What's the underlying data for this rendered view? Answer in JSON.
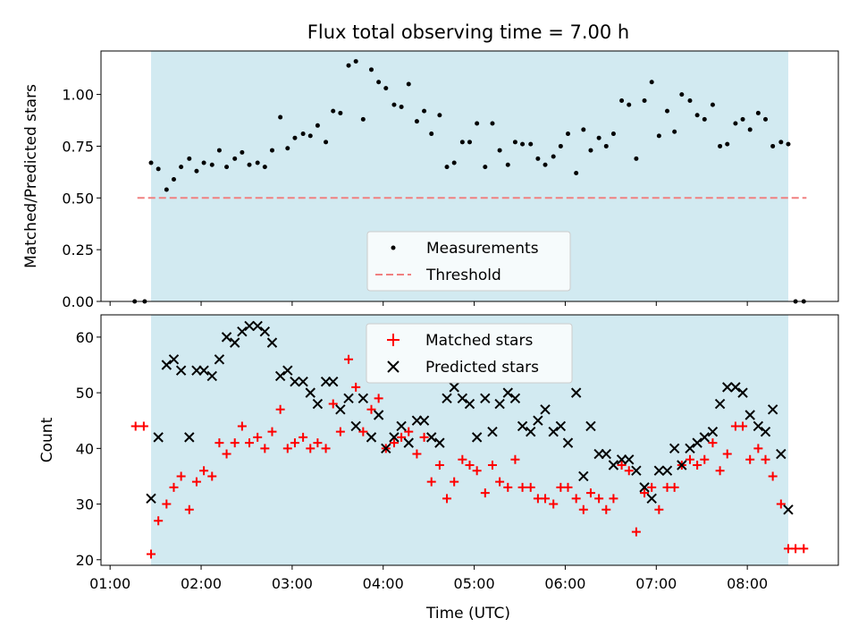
{
  "chart_data": [
    {
      "type": "scatter",
      "panel": "top",
      "title": "Flux total observing time = 7.00 h",
      "xlabel": "",
      "ylabel": "Matched/Predicted stars",
      "ylim": [
        0,
        1.21
      ],
      "yticks": [
        0.0,
        0.25,
        0.5,
        0.75,
        1.0
      ],
      "ytick_labels": [
        "0.00",
        "0.25",
        "0.50",
        "0.75",
        "1.00"
      ],
      "shaded_span_hours": [
        1.45,
        8.45
      ],
      "shade_color": "#add8e6",
      "legend_position": "lower center",
      "threshold": {
        "name": "Threshold",
        "value": 0.5,
        "x_range_hours": [
          1.3,
          8.65
        ],
        "color": "#f08080"
      },
      "series": [
        {
          "name": "Measurements",
          "color": "#000000",
          "marker": "dot",
          "points": [
            [
              1.27,
              0
            ],
            [
              1.38,
              0
            ],
            [
              1.45,
              0.67
            ],
            [
              1.53,
              0.64
            ],
            [
              1.62,
              0.54
            ],
            [
              1.7,
              0.59
            ],
            [
              1.78,
              0.65
            ],
            [
              1.87,
              0.69
            ],
            [
              1.95,
              0.63
            ],
            [
              2.03,
              0.67
            ],
            [
              2.12,
              0.66
            ],
            [
              2.2,
              0.73
            ],
            [
              2.28,
              0.65
            ],
            [
              2.37,
              0.69
            ],
            [
              2.45,
              0.72
            ],
            [
              2.53,
              0.66
            ],
            [
              2.62,
              0.67
            ],
            [
              2.7,
              0.65
            ],
            [
              2.78,
              0.73
            ],
            [
              2.87,
              0.89
            ],
            [
              2.95,
              0.74
            ],
            [
              3.03,
              0.79
            ],
            [
              3.12,
              0.81
            ],
            [
              3.2,
              0.8
            ],
            [
              3.28,
              0.85
            ],
            [
              3.37,
              0.77
            ],
            [
              3.45,
              0.92
            ],
            [
              3.53,
              0.91
            ],
            [
              3.62,
              1.14
            ],
            [
              3.7,
              1.16
            ],
            [
              3.78,
              0.88
            ],
            [
              3.87,
              1.12
            ],
            [
              3.95,
              1.06
            ],
            [
              4.03,
              1.03
            ],
            [
              4.12,
              0.95
            ],
            [
              4.2,
              0.94
            ],
            [
              4.28,
              1.05
            ],
            [
              4.37,
              0.87
            ],
            [
              4.45,
              0.92
            ],
            [
              4.53,
              0.81
            ],
            [
              4.62,
              0.9
            ],
            [
              4.7,
              0.65
            ],
            [
              4.78,
              0.67
            ],
            [
              4.87,
              0.77
            ],
            [
              4.95,
              0.77
            ],
            [
              5.03,
              0.86
            ],
            [
              5.12,
              0.65
            ],
            [
              5.2,
              0.86
            ],
            [
              5.28,
              0.73
            ],
            [
              5.37,
              0.66
            ],
            [
              5.45,
              0.77
            ],
            [
              5.53,
              0.76
            ],
            [
              5.62,
              0.76
            ],
            [
              5.7,
              0.69
            ],
            [
              5.78,
              0.66
            ],
            [
              5.87,
              0.7
            ],
            [
              5.95,
              0.75
            ],
            [
              6.03,
              0.81
            ],
            [
              6.12,
              0.62
            ],
            [
              6.2,
              0.83
            ],
            [
              6.28,
              0.73
            ],
            [
              6.37,
              0.79
            ],
            [
              6.45,
              0.75
            ],
            [
              6.53,
              0.81
            ],
            [
              6.62,
              0.97
            ],
            [
              6.7,
              0.95
            ],
            [
              6.78,
              0.69
            ],
            [
              6.87,
              0.97
            ],
            [
              6.95,
              1.06
            ],
            [
              7.03,
              0.8
            ],
            [
              7.12,
              0.92
            ],
            [
              7.2,
              0.82
            ],
            [
              7.28,
              1.0
            ],
            [
              7.37,
              0.97
            ],
            [
              7.45,
              0.9
            ],
            [
              7.53,
              0.88
            ],
            [
              7.62,
              0.95
            ],
            [
              7.7,
              0.75
            ],
            [
              7.78,
              0.76
            ],
            [
              7.87,
              0.86
            ],
            [
              7.95,
              0.88
            ],
            [
              8.03,
              0.83
            ],
            [
              8.12,
              0.91
            ],
            [
              8.2,
              0.88
            ],
            [
              8.28,
              0.75
            ],
            [
              8.37,
              0.77
            ],
            [
              8.45,
              0.76
            ],
            [
              8.53,
              0
            ],
            [
              8.62,
              0
            ]
          ]
        }
      ]
    },
    {
      "type": "scatter",
      "panel": "bottom",
      "title": "",
      "xlabel": "Time (UTC)",
      "ylabel": "Count",
      "xlim_hours": [
        0.9,
        9.0
      ],
      "ylim": [
        19,
        64
      ],
      "xticks_hours": [
        1,
        2,
        3,
        4,
        5,
        6,
        7,
        8
      ],
      "xtick_labels": [
        "01:00",
        "02:00",
        "03:00",
        "04:00",
        "05:00",
        "06:00",
        "07:00",
        "08:00"
      ],
      "yticks": [
        20,
        30,
        40,
        50,
        60
      ],
      "ytick_labels": [
        "20",
        "30",
        "40",
        "50",
        "60"
      ],
      "shaded_span_hours": [
        1.45,
        8.45
      ],
      "shade_color": "#add8e6",
      "legend_position": "upper center",
      "series": [
        {
          "name": "Matched stars",
          "color": "#ff0000",
          "marker": "plus",
          "points": [
            [
              1.28,
              44
            ],
            [
              1.37,
              44
            ],
            [
              1.45,
              21
            ],
            [
              1.53,
              27
            ],
            [
              1.62,
              30
            ],
            [
              1.7,
              33
            ],
            [
              1.78,
              35
            ],
            [
              1.87,
              29
            ],
            [
              1.95,
              34
            ],
            [
              2.03,
              36
            ],
            [
              2.12,
              35
            ],
            [
              2.2,
              41
            ],
            [
              2.28,
              39
            ],
            [
              2.37,
              41
            ],
            [
              2.45,
              44
            ],
            [
              2.53,
              41
            ],
            [
              2.62,
              42
            ],
            [
              2.7,
              40
            ],
            [
              2.78,
              43
            ],
            [
              2.87,
              47
            ],
            [
              2.95,
              40
            ],
            [
              3.03,
              41
            ],
            [
              3.12,
              42
            ],
            [
              3.2,
              40
            ],
            [
              3.28,
              41
            ],
            [
              3.37,
              40
            ],
            [
              3.45,
              48
            ],
            [
              3.53,
              43
            ],
            [
              3.62,
              56
            ],
            [
              3.7,
              51
            ],
            [
              3.78,
              43
            ],
            [
              3.87,
              47
            ],
            [
              3.95,
              49
            ],
            [
              4.03,
              40
            ],
            [
              4.12,
              41
            ],
            [
              4.2,
              42
            ],
            [
              4.28,
              43
            ],
            [
              4.37,
              39
            ],
            [
              4.45,
              42
            ],
            [
              4.53,
              34
            ],
            [
              4.62,
              37
            ],
            [
              4.7,
              31
            ],
            [
              4.78,
              34
            ],
            [
              4.87,
              38
            ],
            [
              4.95,
              37
            ],
            [
              5.03,
              36
            ],
            [
              5.12,
              32
            ],
            [
              5.2,
              37
            ],
            [
              5.28,
              34
            ],
            [
              5.37,
              33
            ],
            [
              5.45,
              38
            ],
            [
              5.53,
              33
            ],
            [
              5.62,
              33
            ],
            [
              5.7,
              31
            ],
            [
              5.78,
              31
            ],
            [
              5.87,
              30
            ],
            [
              5.95,
              33
            ],
            [
              6.03,
              33
            ],
            [
              6.12,
              31
            ],
            [
              6.2,
              29
            ],
            [
              6.28,
              32
            ],
            [
              6.37,
              31
            ],
            [
              6.45,
              29
            ],
            [
              6.53,
              31
            ],
            [
              6.62,
              37
            ],
            [
              6.7,
              36
            ],
            [
              6.78,
              25
            ],
            [
              6.87,
              32
            ],
            [
              6.95,
              33
            ],
            [
              7.03,
              29
            ],
            [
              7.12,
              33
            ],
            [
              7.2,
              33
            ],
            [
              7.28,
              37
            ],
            [
              7.37,
              38
            ],
            [
              7.45,
              37
            ],
            [
              7.53,
              38
            ],
            [
              7.62,
              41
            ],
            [
              7.7,
              36
            ],
            [
              7.78,
              39
            ],
            [
              7.87,
              44
            ],
            [
              7.95,
              44
            ],
            [
              8.03,
              38
            ],
            [
              8.12,
              40
            ],
            [
              8.2,
              38
            ],
            [
              8.28,
              35
            ],
            [
              8.37,
              30
            ],
            [
              8.45,
              22
            ],
            [
              8.53,
              22
            ],
            [
              8.62,
              22
            ]
          ]
        },
        {
          "name": "Predicted stars",
          "color": "#000000",
          "marker": "cross",
          "points": [
            [
              1.45,
              31
            ],
            [
              1.53,
              42
            ],
            [
              1.62,
              55
            ],
            [
              1.7,
              56
            ],
            [
              1.78,
              54
            ],
            [
              1.87,
              42
            ],
            [
              1.95,
              54
            ],
            [
              2.03,
              54
            ],
            [
              2.12,
              53
            ],
            [
              2.2,
              56
            ],
            [
              2.28,
              60
            ],
            [
              2.37,
              59
            ],
            [
              2.45,
              61
            ],
            [
              2.53,
              62
            ],
            [
              2.62,
              62
            ],
            [
              2.7,
              61
            ],
            [
              2.78,
              59
            ],
            [
              2.87,
              53
            ],
            [
              2.95,
              54
            ],
            [
              3.03,
              52
            ],
            [
              3.12,
              52
            ],
            [
              3.2,
              50
            ],
            [
              3.28,
              48
            ],
            [
              3.37,
              52
            ],
            [
              3.45,
              52
            ],
            [
              3.53,
              47
            ],
            [
              3.62,
              49
            ],
            [
              3.7,
              44
            ],
            [
              3.78,
              49
            ],
            [
              3.87,
              42
            ],
            [
              3.95,
              46
            ],
            [
              4.03,
              40
            ],
            [
              4.12,
              42
            ],
            [
              4.2,
              44
            ],
            [
              4.28,
              41
            ],
            [
              4.37,
              45
            ],
            [
              4.45,
              45
            ],
            [
              4.53,
              42
            ],
            [
              4.62,
              41
            ],
            [
              4.7,
              49
            ],
            [
              4.78,
              51
            ],
            [
              4.87,
              49
            ],
            [
              4.95,
              48
            ],
            [
              5.03,
              42
            ],
            [
              5.12,
              49
            ],
            [
              5.2,
              43
            ],
            [
              5.28,
              48
            ],
            [
              5.37,
              50
            ],
            [
              5.45,
              49
            ],
            [
              5.53,
              44
            ],
            [
              5.62,
              43
            ],
            [
              5.7,
              45
            ],
            [
              5.78,
              47
            ],
            [
              5.87,
              43
            ],
            [
              5.95,
              44
            ],
            [
              6.03,
              41
            ],
            [
              6.12,
              50
            ],
            [
              6.2,
              35
            ],
            [
              6.28,
              44
            ],
            [
              6.37,
              39
            ],
            [
              6.45,
              39
            ],
            [
              6.53,
              37
            ],
            [
              6.62,
              38
            ],
            [
              6.7,
              38
            ],
            [
              6.78,
              36
            ],
            [
              6.87,
              33
            ],
            [
              6.95,
              31
            ],
            [
              7.03,
              36
            ],
            [
              7.12,
              36
            ],
            [
              7.2,
              40
            ],
            [
              7.28,
              37
            ],
            [
              7.37,
              40
            ],
            [
              7.45,
              41
            ],
            [
              7.53,
              42
            ],
            [
              7.62,
              43
            ],
            [
              7.7,
              48
            ],
            [
              7.78,
              51
            ],
            [
              7.87,
              51
            ],
            [
              7.95,
              50
            ],
            [
              8.03,
              46
            ],
            [
              8.12,
              44
            ],
            [
              8.2,
              43
            ],
            [
              8.28,
              47
            ],
            [
              8.37,
              39
            ],
            [
              8.45,
              29
            ]
          ]
        }
      ]
    }
  ]
}
